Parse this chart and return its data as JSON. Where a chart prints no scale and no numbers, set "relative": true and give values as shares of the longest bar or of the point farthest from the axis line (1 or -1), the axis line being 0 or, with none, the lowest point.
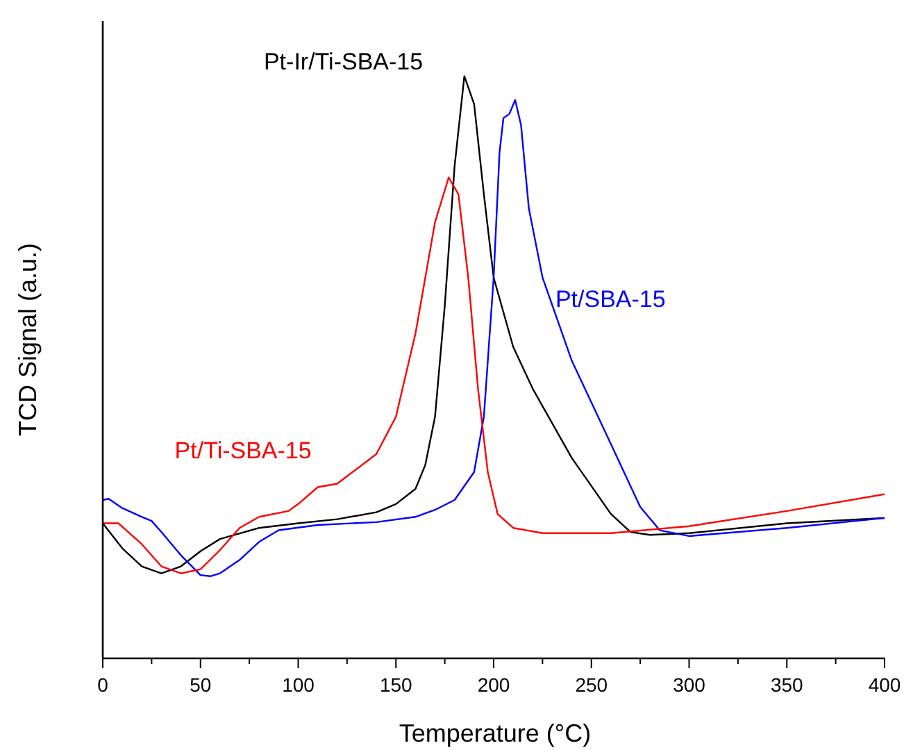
{
  "chart_data": {
    "type": "line",
    "relative": true,
    "xlabel": "Temperature (°C)",
    "ylabel": "TCD Signal (a.u.)",
    "xlim": [
      0,
      400
    ],
    "xticks": [
      0,
      50,
      100,
      150,
      200,
      250,
      300,
      350,
      400
    ],
    "legend": false,
    "grid": false,
    "series": [
      {
        "name": "Pt-Ir/Ti-SBA-15",
        "color": "#000000",
        "x": [
          0,
          10,
          20,
          30,
          40,
          50,
          60,
          80,
          100,
          120,
          140,
          150,
          160,
          165,
          170,
          175,
          180,
          185,
          190,
          195,
          200,
          210,
          220,
          240,
          260,
          270,
          280,
          300,
          350,
          400
        ],
        "values": [
          0.232,
          0.189,
          0.158,
          0.146,
          0.158,
          0.184,
          0.205,
          0.224,
          0.232,
          0.239,
          0.251,
          0.265,
          0.291,
          0.332,
          0.415,
          0.606,
          0.845,
          1.0,
          0.952,
          0.797,
          0.654,
          0.535,
          0.463,
          0.344,
          0.248,
          0.217,
          0.212,
          0.215,
          0.232,
          0.241
        ]
      },
      {
        "name": "Pt/SBA-15",
        "color": "#0000ff",
        "x": [
          0,
          3,
          10,
          20,
          25,
          30,
          40,
          50,
          55,
          60,
          70,
          80,
          90,
          110,
          140,
          160,
          170,
          180,
          190,
          195,
          200,
          203,
          205,
          208,
          211,
          214,
          218,
          225,
          240,
          260,
          275,
          285,
          300,
          350,
          400
        ],
        "values": [
          0.272,
          0.274,
          0.258,
          0.243,
          0.236,
          0.217,
          0.177,
          0.143,
          0.141,
          0.146,
          0.169,
          0.2,
          0.22,
          0.229,
          0.234,
          0.243,
          0.255,
          0.272,
          0.32,
          0.415,
          0.654,
          0.869,
          0.928,
          0.935,
          0.959,
          0.916,
          0.773,
          0.654,
          0.511,
          0.368,
          0.26,
          0.22,
          0.21,
          0.224,
          0.241
        ]
      },
      {
        "name": "Pt/Ti-SBA-15",
        "color": "#ff0000",
        "x": [
          0,
          8,
          20,
          30,
          40,
          50,
          60,
          70,
          80,
          95,
          100,
          110,
          120,
          140,
          150,
          160,
          170,
          177,
          182,
          187,
          192,
          197,
          202,
          210,
          225,
          260,
          300,
          350,
          400
        ],
        "values": [
          0.232,
          0.232,
          0.196,
          0.158,
          0.146,
          0.153,
          0.186,
          0.224,
          0.243,
          0.253,
          0.265,
          0.294,
          0.3,
          0.351,
          0.415,
          0.558,
          0.749,
          0.826,
          0.797,
          0.654,
          0.463,
          0.32,
          0.248,
          0.224,
          0.215,
          0.215,
          0.227,
          0.253,
          0.282
        ]
      }
    ]
  }
}
